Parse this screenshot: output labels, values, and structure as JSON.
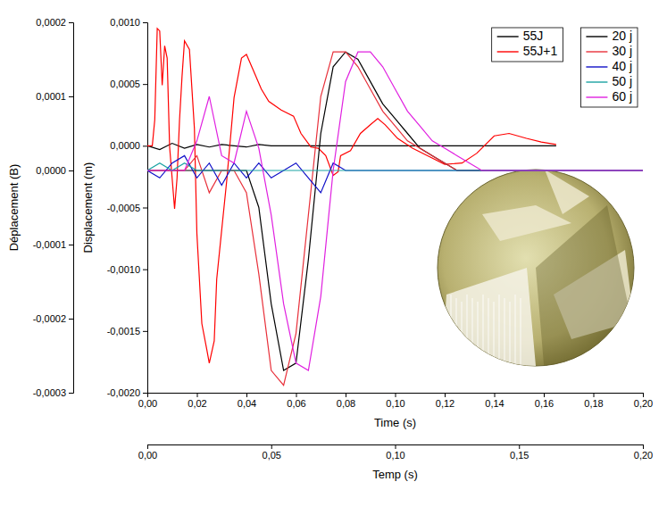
{
  "chart_data": [
    {
      "type": "line",
      "x_label": "Time (s)",
      "y_label": "Displacement (m)",
      "xlim": [
        0,
        0.2
      ],
      "xticks": [
        {
          "value": 0,
          "label": "0,00"
        },
        {
          "value": 0.02,
          "label": "0,02"
        },
        {
          "value": 0.04,
          "label": "0,04"
        },
        {
          "value": 0.06,
          "label": "0,06"
        },
        {
          "value": 0.08,
          "label": "0,08"
        },
        {
          "value": 0.1,
          "label": "0,10"
        },
        {
          "value": 0.12,
          "label": "0,12"
        },
        {
          "value": 0.14,
          "label": "0,14"
        },
        {
          "value": 0.16,
          "label": "0,16"
        },
        {
          "value": 0.18,
          "label": "0,18"
        },
        {
          "value": 0.2,
          "label": "0,20"
        }
      ],
      "ylim": [
        -0.002,
        0.001
      ],
      "yticks": [
        {
          "value": -0.002,
          "label": "-0,0020"
        },
        {
          "value": -0.0015,
          "label": "-0,0015"
        },
        {
          "value": -0.001,
          "label": "-0,0010"
        },
        {
          "value": -0.0005,
          "label": "-0,0005"
        },
        {
          "value": 0,
          "label": "0,0000"
        },
        {
          "value": 0.0005,
          "label": "0,0005"
        },
        {
          "value": 0.001,
          "label": "0,0010"
        }
      ],
      "grid": false,
      "legend": "top-right",
      "series": [
        {
          "name": "55J",
          "color": "#000000",
          "x": [
            0,
            0.005,
            0.01,
            0.015,
            0.02,
            0.025,
            0.03,
            0.035,
            0.04,
            0.045,
            0.05,
            0.055,
            0.06,
            0.08,
            0.1,
            0.12,
            0.14,
            0.165
          ],
          "values": [
            0,
            -3e-05,
            2e-05,
            -2e-05,
            1e-05,
            -1e-05,
            1e-05,
            0,
            -1e-05,
            1e-05,
            0,
            0,
            0,
            0,
            0,
            0,
            0,
            0
          ]
        },
        {
          "name": "55J+1",
          "color": "#ff0000",
          "x": [
            0,
            0.002,
            0.003,
            0.004,
            0.005,
            0.006,
            0.007,
            0.008,
            0.009,
            0.011,
            0.012,
            0.013,
            0.014,
            0.015,
            0.017,
            0.019,
            0.02,
            0.022,
            0.024,
            0.025,
            0.027,
            0.028,
            0.032,
            0.035,
            0.038,
            0.04,
            0.043,
            0.046,
            0.049,
            0.054,
            0.059,
            0.062,
            0.066,
            0.069,
            0.072,
            0.075,
            0.077,
            0.078,
            0.082,
            0.086,
            0.09,
            0.093,
            0.096,
            0.101,
            0.107,
            0.114,
            0.12,
            0.127,
            0.133,
            0.14,
            0.146,
            0.153,
            0.159,
            0.165
          ],
          "values": [
            0,
            0,
            0.00021,
            0.00095,
            0.00093,
            0.00049,
            0.00081,
            0.00071,
            -1e-05,
            -0.00051,
            -0.00026,
            0.00021,
            0.00056,
            0.00085,
            0.00078,
            0.00014,
            -0.00071,
            -0.00144,
            -0.00165,
            -0.00176,
            -0.00158,
            -0.00108,
            -0.00029,
            0.00039,
            0.00071,
            0.00074,
            0.0006,
            0.00046,
            0.00036,
            0.00029,
            0.00024,
            0.0001,
            -1e-05,
            -2e-05,
            -8e-05,
            -0.00024,
            -0.00021,
            -8e-05,
            -4e-05,
            0.0001,
            0.00017,
            0.00022,
            0.00017,
            6e-05,
            -2e-05,
            -9e-05,
            -0.00015,
            -0.00014,
            -6e-05,
            8e-05,
            0.0001,
            6e-05,
            3e-05,
            1e-05
          ]
        }
      ]
    },
    {
      "type": "line",
      "x_label": "Temp (s)",
      "y_label": "Déplacement (B)",
      "xlim": [
        0,
        0.2
      ],
      "xticks": [
        {
          "value": 0,
          "label": "0,00"
        },
        {
          "value": 0.05,
          "label": "0,05"
        },
        {
          "value": 0.1,
          "label": "0,10"
        },
        {
          "value": 0.15,
          "label": "0,15"
        },
        {
          "value": 0.2,
          "label": "0,20"
        }
      ],
      "ylim": [
        -0.0003,
        0.0002
      ],
      "yticks": [
        {
          "value": -0.0003,
          "label": "-0,0003"
        },
        {
          "value": -0.0002,
          "label": "-0,0002"
        },
        {
          "value": -0.0001,
          "label": "-0,0001"
        },
        {
          "value": 0,
          "label": "0,0000"
        },
        {
          "value": 0.0001,
          "label": "0,0001"
        },
        {
          "value": 0.0002,
          "label": "0,0002"
        }
      ],
      "grid": false,
      "legend": "top-right",
      "x": [
        0,
        0.005,
        0.01,
        0.015,
        0.02,
        0.025,
        0.03,
        0.035,
        0.04,
        0.045,
        0.05,
        0.055,
        0.06,
        0.065,
        0.07,
        0.075,
        0.08,
        0.085,
        0.09,
        0.095,
        0.1,
        0.105,
        0.11,
        0.115,
        0.12,
        0.125,
        0.13,
        0.135,
        0.14,
        0.145,
        0.15,
        0.155,
        0.16,
        0.165,
        0.17,
        0.175,
        0.18,
        0.185,
        0.19,
        0.195,
        0.2
      ],
      "series": [
        {
          "name": "20 j",
          "color": "#000000",
          "values": [
            0,
            0,
            0,
            0,
            0,
            0,
            0,
            0,
            0,
            -5e-05,
            -0.00018,
            -0.00027,
            -0.00026,
            -0.00012,
            5e-05,
            0.00014,
            0.00016,
            0.00015,
            0.00012,
            9e-05,
            7e-05,
            5e-05,
            3e-05,
            2e-05,
            1e-05,
            0,
            0,
            0,
            0,
            0,
            0,
            0,
            0,
            0,
            0,
            0,
            0,
            0,
            0,
            0,
            0
          ]
        },
        {
          "name": "30 j",
          "color": "#e8303a",
          "values": [
            0,
            0,
            0,
            0,
            2e-05,
            -3e-05,
            0,
            0,
            -3e-05,
            -0.00014,
            -0.00027,
            -0.00029,
            -0.00022,
            -6e-05,
            0.0001,
            0.00016,
            0.00016,
            0.00014,
            0.00011,
            8e-05,
            6e-05,
            4e-05,
            3e-05,
            2e-05,
            1e-05,
            0,
            0,
            0,
            0,
            0,
            0,
            0,
            0,
            0,
            0,
            0,
            0,
            0,
            0,
            0,
            0
          ]
        },
        {
          "name": "40 j",
          "color": "#1010c8",
          "values": [
            0,
            -1e-05,
            1e-05,
            2e-05,
            -1e-05,
            1e-05,
            -2e-05,
            1e-05,
            -1e-05,
            1e-05,
            -1e-05,
            0,
            1e-05,
            -1e-05,
            -3e-05,
            1e-05,
            0,
            0,
            0,
            0,
            0,
            0,
            0,
            0,
            0,
            0,
            0,
            0,
            0,
            0,
            0,
            0,
            0,
            0,
            0,
            0,
            0,
            0,
            0,
            0,
            0
          ]
        },
        {
          "name": "50 j",
          "color": "#1aa3a3",
          "values": [
            0,
            1e-05,
            0,
            1e-05,
            0,
            0,
            0,
            0,
            0,
            0,
            0,
            0,
            0,
            0,
            0,
            0,
            0,
            0,
            0,
            0,
            0,
            0,
            0,
            0,
            0,
            0,
            0,
            0,
            0,
            0,
            0,
            0,
            0,
            0,
            0,
            0,
            0,
            0,
            0,
            0,
            0
          ]
        },
        {
          "name": "60 j",
          "color": "#e020e0",
          "values": [
            0,
            0,
            0,
            0,
            4e-05,
            0.0001,
            2e-05,
            1e-05,
            8e-05,
            3e-05,
            -6e-05,
            -0.00018,
            -0.00026,
            -0.00027,
            -0.00017,
            0,
            0.00012,
            0.00016,
            0.00016,
            0.00014,
            0.00011,
            8e-05,
            6e-05,
            4e-05,
            3e-05,
            2e-05,
            1e-05,
            0,
            0,
            0,
            0,
            0,
            0,
            0,
            0,
            0,
            0,
            0,
            0,
            0,
            0
          ]
        }
      ]
    }
  ]
}
